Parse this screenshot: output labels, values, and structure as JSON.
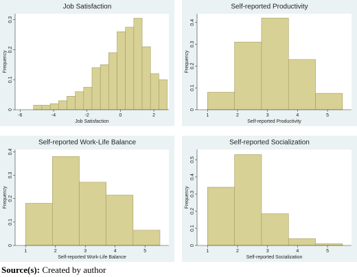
{
  "chart_data": [
    {
      "type": "histogram",
      "title": "Job Satisfaction",
      "xlabel": "Job Satisfaction",
      "ylabel": "Frequency",
      "bins": [
        -5.2,
        -4.7,
        -4.2,
        -3.7,
        -3.2,
        -2.7,
        -2.2,
        -1.7,
        -1.2,
        -0.7,
        -0.2,
        0.3,
        0.8,
        1.3,
        1.8,
        2.3,
        2.8
      ],
      "values": [
        0.015,
        0.015,
        0.02,
        0.03,
        0.045,
        0.06,
        0.075,
        0.14,
        0.15,
        0.19,
        0.26,
        0.275,
        0.305,
        0.21,
        0.12,
        0.1
      ],
      "color": "#d8d195",
      "xlim": [
        -6.3,
        2.9
      ],
      "xticks": [
        -6,
        -4,
        -2,
        0,
        2
      ],
      "ylim": [
        0,
        0.32
      ],
      "yticks": [
        0,
        0.1,
        0.2,
        0.3
      ]
    },
    {
      "type": "histogram",
      "title": "Self-reported Productivity",
      "xlabel": "Self-reported Productivity",
      "ylabel": "Frequency",
      "bins": [
        1,
        1.9,
        2.8,
        3.7,
        4.6,
        5.5
      ],
      "values": [
        0.08,
        0.31,
        0.42,
        0.23,
        0.075
      ],
      "color": "#d8d195",
      "xlim": [
        0.65,
        5.8
      ],
      "xticks": [
        1,
        2,
        3,
        4,
        5
      ],
      "ylim": [
        0,
        0.44
      ],
      "yticks": [
        0,
        0.1,
        0.2,
        0.3,
        0.4
      ]
    },
    {
      "type": "histogram",
      "title": "Self-reported Work-Life Balance",
      "xlabel": "Self-reported Work-Life Balance",
      "ylabel": "Frequency",
      "bins": [
        1,
        1.9,
        2.8,
        3.7,
        4.6,
        5.5
      ],
      "values": [
        0.18,
        0.38,
        0.27,
        0.215,
        0.065
      ],
      "color": "#d8d195",
      "xlim": [
        0.65,
        5.8
      ],
      "xticks": [
        1,
        2,
        3,
        4,
        5
      ],
      "ylim": [
        0,
        0.41
      ],
      "yticks": [
        0,
        0.1,
        0.2,
        0.3,
        0.4
      ]
    },
    {
      "type": "histogram",
      "title": "Self-reported Socialization",
      "xlabel": "Self-reported Socialization",
      "ylabel": "Frequency",
      "bins": [
        1,
        1.9,
        2.8,
        3.7,
        4.6,
        5.5
      ],
      "values": [
        0.34,
        0.53,
        0.185,
        0.04,
        0.01
      ],
      "color": "#d8d195",
      "xlim": [
        0.65,
        5.8
      ],
      "xticks": [
        1,
        2,
        3,
        4,
        5
      ],
      "ylim": [
        0,
        0.56
      ],
      "yticks": [
        0,
        0.1,
        0.2,
        0.3,
        0.4,
        0.5
      ]
    }
  ],
  "source": {
    "label": "Source(s):",
    "text": "Created by author"
  }
}
